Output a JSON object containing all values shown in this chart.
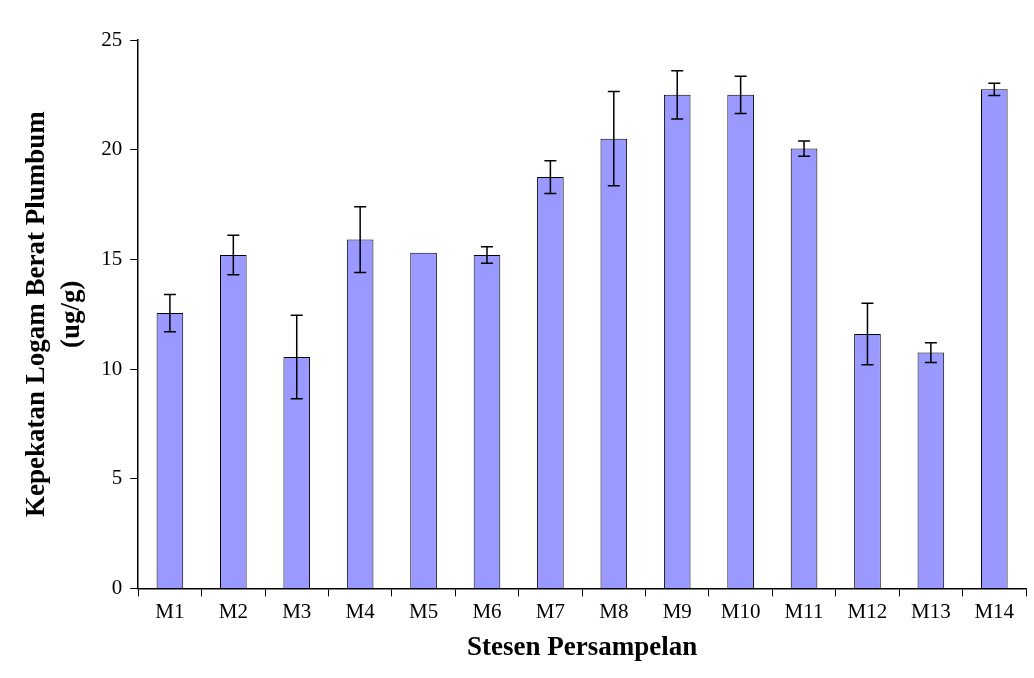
{
  "chart_data": {
    "type": "bar",
    "xlabel": "Stesen Persampelan",
    "ylabel": "Kepekatan Logam Berat Plumbum\n(ug/g)",
    "categories": [
      "M1",
      "M2",
      "M3",
      "M4",
      "M5",
      "M6",
      "M7",
      "M8",
      "M9",
      "M10",
      "M11",
      "M12",
      "M13",
      "M14"
    ],
    "values": [
      12.55,
      15.2,
      10.55,
      15.9,
      15.3,
      15.2,
      18.75,
      20.5,
      22.5,
      22.5,
      20.05,
      11.6,
      10.75,
      22.75
    ],
    "errors": [
      0.85,
      0.9,
      1.9,
      1.5,
      null,
      0.38,
      0.75,
      2.15,
      1.1,
      0.85,
      0.35,
      1.4,
      0.45,
      0.28
    ],
    "color": "#9999ff",
    "ylim": [
      0,
      25
    ],
    "yticks": [
      0,
      5,
      10,
      15,
      20,
      25
    ],
    "grid": false,
    "legend": false
  }
}
